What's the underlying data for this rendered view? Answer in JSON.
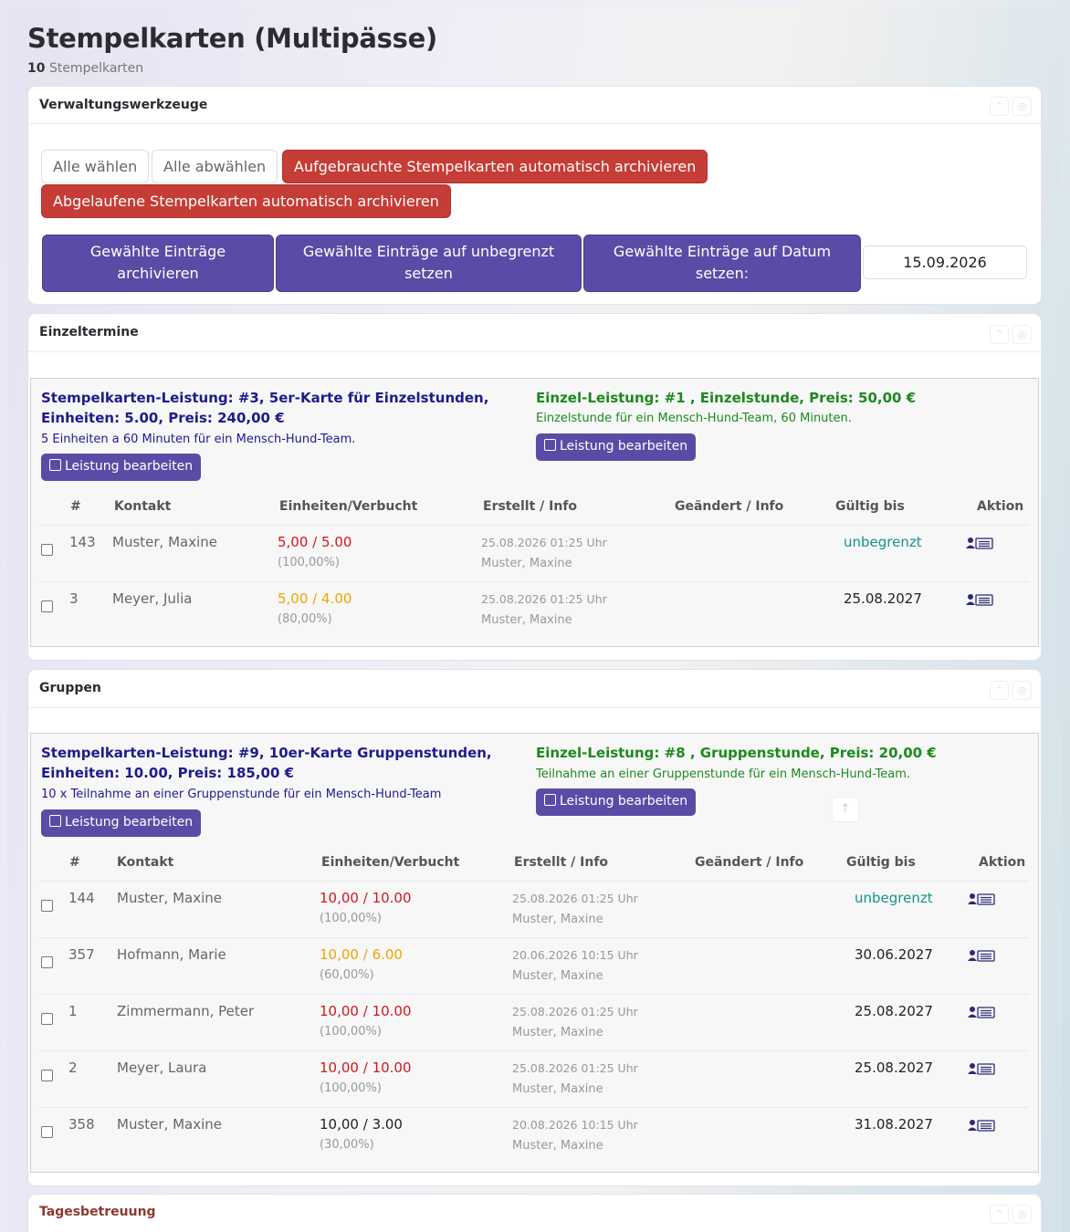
{
  "page": {
    "title": "Stempelkarten (Multipässe)",
    "count": "10",
    "count_label": "Stempelkarten"
  },
  "tools": {
    "title": "Verwaltungswerkzeuge",
    "select_all": "Alle wählen",
    "deselect_all": "Alle abwählen",
    "archive_used": "Aufgebrauchte Stempelkarten automatisch archivieren",
    "archive_expired": "Abgelaufene Stempelkarten automatisch archivieren",
    "archive_selected": "Gewählte Einträge archivieren",
    "set_unlimited": "Gewählte Einträge auf unbegrenzt setzen",
    "set_date": "Gewählte Einträge auf Datum setzen:",
    "date_value": "15.09.2026"
  },
  "headers": {
    "num": "#",
    "kontakt": "Kontakt",
    "einheiten": "Einheiten/Verbucht",
    "erstellt": "Erstellt / Info",
    "geaendert": "Geändert / Info",
    "gueltig": "Gültig bis",
    "aktion": "Aktion"
  },
  "edit_label": "Leistung bearbeiten",
  "sections": [
    {
      "title": "Einzeltermine",
      "stamp_service": "Stempelkarten-Leistung: #3, 5er-Karte für Einzelstunden, Einheiten: 5.00, Preis: 240,00 €",
      "stamp_desc": "5 Einheiten a 60 Minuten für ein Mensch-Hund-Team.",
      "single_service": "Einzel-Leistung: #1 , Einzelstunde, Preis: 50,00 €",
      "single_desc": "Einzelstunde für ein Mensch-Hund-Team, 60 Minuten.",
      "rows": [
        {
          "num": "143",
          "kontakt": "Muster, Maxine",
          "units": "5,00",
          "booked": "5.00",
          "status": "red",
          "pct": "(100,00%)",
          "created": "25.08.2026 01:25 Uhr",
          "created_by": "Muster, Maxine",
          "valid": "unbegrenzt",
          "unlimited": true
        },
        {
          "num": "3",
          "kontakt": "Meyer, Julia",
          "units": "5,00",
          "booked": "4.00",
          "status": "orange",
          "pct": "(80,00%)",
          "created": "25.08.2026 01:25 Uhr",
          "created_by": "Muster, Maxine",
          "valid": "25.08.2027",
          "unlimited": false
        }
      ]
    },
    {
      "title": "Gruppen",
      "stamp_service": "Stempelkarten-Leistung: #9, 10er-Karte Gruppenstunden, Einheiten: 10.00, Preis: 185,00 €",
      "stamp_desc": "10 x Teilnahme an einer Gruppenstunde für ein Mensch-Hund-Team",
      "single_service": "Einzel-Leistung: #8 , Gruppenstunde, Preis: 20,00 €",
      "single_desc": "Teilnahme an einer Gruppenstunde für ein Mensch-Hund-Team.",
      "rows": [
        {
          "num": "144",
          "kontakt": "Muster, Maxine",
          "units": "10,00",
          "booked": "10.00",
          "status": "red",
          "pct": "(100,00%)",
          "created": "25.08.2026 01:25 Uhr",
          "created_by": "Muster, Maxine",
          "valid": "unbegrenzt",
          "unlimited": true
        },
        {
          "num": "357",
          "kontakt": "Hofmann, Marie",
          "units": "10,00",
          "booked": "6.00",
          "status": "orange",
          "pct": "(60,00%)",
          "created": "20.06.2026 10:15 Uhr",
          "created_by": "Muster, Maxine",
          "valid": "30.06.2027",
          "unlimited": false
        },
        {
          "num": "1",
          "kontakt": "Zimmermann, Peter",
          "units": "10,00",
          "booked": "10.00",
          "status": "red",
          "pct": "(100,00%)",
          "created": "25.08.2026 01:25 Uhr",
          "created_by": "Muster, Maxine",
          "valid": "25.08.2027",
          "unlimited": false
        },
        {
          "num": "2",
          "kontakt": "Meyer, Laura",
          "units": "10,00",
          "booked": "10.00",
          "status": "red",
          "pct": "(100,00%)",
          "created": "25.08.2026 01:25 Uhr",
          "created_by": "Muster, Maxine",
          "valid": "25.08.2027",
          "unlimited": false
        },
        {
          "num": "358",
          "kontakt": "Muster, Maxine",
          "units": "10,00",
          "booked": "3.00",
          "status": "black",
          "pct": "(30,00%)",
          "created": "20.08.2026 10:15 Uhr",
          "created_by": "Muster, Maxine",
          "valid": "31.08.2027",
          "unlimited": false
        }
      ]
    },
    {
      "title": "Tagesbetreuung"
    }
  ],
  "colors": {
    "accent": "#5c4ba6",
    "danger": "#c63c36",
    "green": "#1c8a1c",
    "navy": "#1f1b8c",
    "teal": "#13938d"
  }
}
